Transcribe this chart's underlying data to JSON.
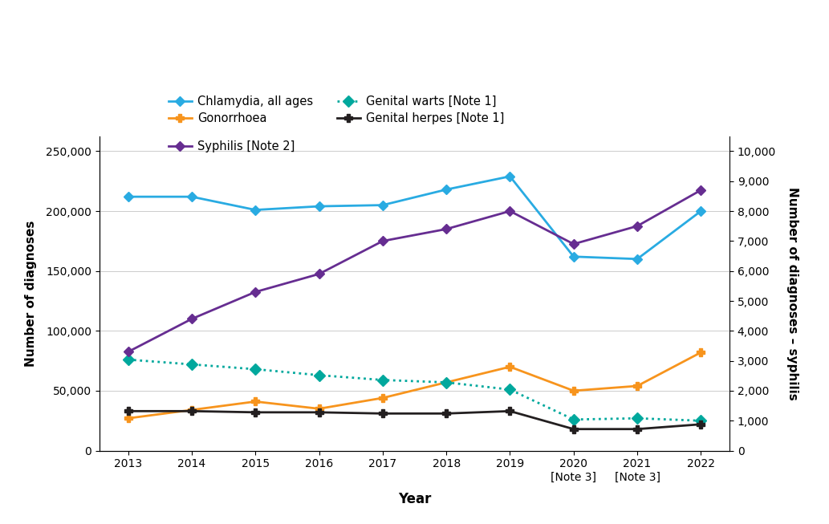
{
  "years": [
    2013,
    2014,
    2015,
    2016,
    2017,
    2018,
    2019,
    2020,
    2021,
    2022
  ],
  "chlamydia": [
    212000,
    212000,
    201000,
    204000,
    205000,
    218000,
    229000,
    162000,
    160000,
    200000
  ],
  "gonorrhoea": [
    27000,
    34000,
    41000,
    35000,
    44000,
    57000,
    70000,
    50000,
    54000,
    82000
  ],
  "genital_warts": [
    76000,
    72000,
    68000,
    63000,
    59000,
    57000,
    51000,
    26000,
    27000,
    25000
  ],
  "genital_herpes": [
    33000,
    33000,
    32000,
    32000,
    31000,
    31000,
    33000,
    18000,
    18000,
    22000
  ],
  "syphilis": [
    3300,
    4400,
    5300,
    5900,
    7000,
    7400,
    8000,
    6900,
    7500,
    8700
  ],
  "colors": {
    "chlamydia": "#29ABE2",
    "gonorrhoea": "#F7941D",
    "genital_warts": "#00A89D",
    "genital_herpes": "#231F20",
    "syphilis": "#662D91"
  },
  "ylabel_left": "Number of diagnoses",
  "ylabel_right": "Number of diagnoses – syphilis",
  "xlabel": "Year",
  "ylim_left": [
    0,
    262500
  ],
  "ylim_right": [
    0,
    10500
  ],
  "yticks_left": [
    0,
    50000,
    100000,
    150000,
    200000,
    250000
  ],
  "yticks_right": [
    0,
    1000,
    2000,
    3000,
    4000,
    5000,
    6000,
    7000,
    8000,
    9000,
    10000
  ],
  "legend_entries": [
    "Chlamydia, all ages",
    "Gonorrhoea",
    "Genital warts [Note 1]",
    "Genital herpes [Note 1]",
    "Syphilis [Note 2]"
  ]
}
